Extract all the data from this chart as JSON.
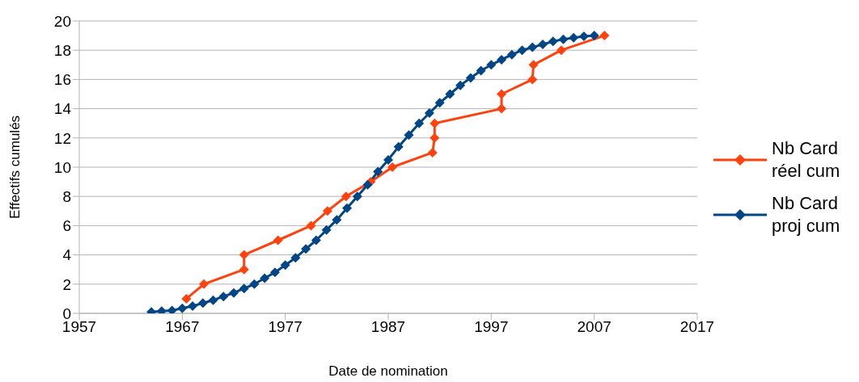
{
  "chart_data": {
    "type": "line",
    "xlabel": "Date de nomination",
    "ylabel": "Effectifs cumulés",
    "xlim": [
      1957,
      2017
    ],
    "xticks": [
      1957,
      1967,
      1977,
      1987,
      1997,
      2007,
      2017
    ],
    "ylim": [
      0,
      20
    ],
    "yticks": [
      0,
      2,
      4,
      6,
      8,
      10,
      12,
      14,
      16,
      18,
      20
    ],
    "grid": "y",
    "legend": "right",
    "marker": "diamond",
    "line_style": "solid",
    "series": [
      {
        "name": "Nb Card réel cum",
        "color": "#ff420e",
        "x": [
          1967.4,
          1969.1,
          1973,
          1973,
          1976.3,
          1979.5,
          1981.1,
          1982.9,
          1985.3,
          1987.4,
          1991.3,
          1991.5,
          1991.5,
          1998,
          1998,
          2001,
          2001.1,
          2003.8,
          2008
        ],
        "values": [
          1,
          2,
          3,
          4,
          5,
          6,
          7,
          8,
          9,
          10,
          11,
          12,
          13,
          14,
          15,
          16,
          17,
          18,
          19
        ]
      },
      {
        "name": "Nb Card proj cum",
        "color": "#004586",
        "x": [
          1964,
          1965,
          1966,
          1967,
          1968,
          1969,
          1970,
          1971,
          1972,
          1973,
          1974,
          1975,
          1976,
          1977,
          1978,
          1979,
          1980,
          1981,
          1982,
          1983,
          1984,
          1985,
          1986,
          1987,
          1988,
          1989,
          1990,
          1991,
          1992,
          1993,
          1994,
          1995,
          1996,
          1997,
          1998,
          1999,
          2000,
          2001,
          2002,
          2003,
          2004,
          2005,
          2006,
          2007
        ],
        "values": [
          0.1,
          0.15,
          0.2,
          0.35,
          0.5,
          0.7,
          0.9,
          1.15,
          1.4,
          1.7,
          2.0,
          2.4,
          2.8,
          3.3,
          3.8,
          4.4,
          5.0,
          5.7,
          6.4,
          7.2,
          8.0,
          8.8,
          9.7,
          10.5,
          11.4,
          12.2,
          13.0,
          13.7,
          14.4,
          15.0,
          15.6,
          16.1,
          16.6,
          17.0,
          17.35,
          17.7,
          18.0,
          18.2,
          18.4,
          18.6,
          18.75,
          18.85,
          18.95,
          19.0
        ]
      }
    ]
  }
}
